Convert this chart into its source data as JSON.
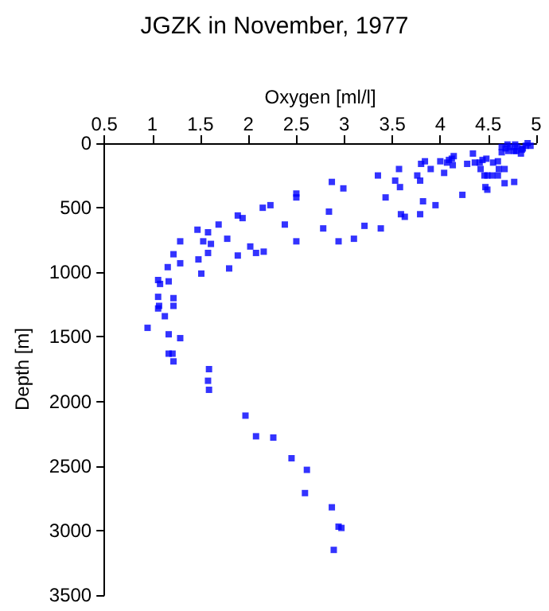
{
  "chart_data": {
    "type": "scatter",
    "title": "JGZK in November, 1977",
    "xlabel": "Oxygen [ml/l]",
    "ylabel": "Depth [m]",
    "x": [
      0.95,
      1.17,
      1.29,
      1.17,
      1.21,
      1.22,
      1.59,
      1.58,
      1.59,
      1.97,
      2.08,
      2.26,
      2.45,
      2.61,
      2.59,
      2.87,
      2.94,
      2.97,
      2.89,
      1.06,
      1.08,
      1.17,
      1.06,
      1.22,
      1.07,
      1.22,
      1.06,
      1.13,
      1.16,
      1.22,
      1.29,
      1.29,
      1.47,
      1.58,
      1.53,
      1.61,
      1.48,
      1.58,
      1.51,
      1.69,
      1.78,
      1.8,
      1.89,
      1.94,
      1.89,
      2.02,
      2.08,
      2.15,
      2.23,
      2.16,
      2.38,
      2.5,
      2.5,
      2.5,
      2.78,
      2.84,
      2.87,
      2.94,
      2.99,
      3.1,
      3.21,
      3.35,
      3.38,
      3.43,
      3.53,
      3.57,
      3.58,
      3.59,
      3.63,
      3.76,
      3.79,
      3.79,
      3.8,
      3.84,
      3.82,
      3.9,
      3.95,
      4.0,
      4.04,
      4.07,
      4.09,
      4.12,
      4.14,
      4.13,
      4.23,
      4.28,
      4.34,
      4.36,
      4.41,
      4.42,
      4.44,
      4.46,
      4.47,
      4.49,
      4.49,
      4.48,
      4.55,
      4.54,
      4.6,
      4.61,
      4.6,
      4.67,
      4.67,
      4.64,
      4.68,
      4.7,
      4.73,
      4.77,
      4.77,
      4.78,
      4.8,
      4.84,
      4.86,
      4.89,
      4.91,
      4.94,
      4.64,
      4.71,
      4.79,
      4.85
    ],
    "values": [
      1430,
      1480,
      1510,
      1630,
      1630,
      1690,
      1750,
      1840,
      1910,
      2110,
      2270,
      2280,
      2440,
      2530,
      2710,
      2820,
      2970,
      2980,
      3150,
      1060,
      1090,
      1070,
      1190,
      1200,
      1260,
      1260,
      1280,
      1340,
      960,
      860,
      760,
      930,
      670,
      690,
      760,
      780,
      900,
      850,
      1010,
      630,
      740,
      970,
      560,
      580,
      870,
      800,
      850,
      500,
      480,
      840,
      630,
      390,
      420,
      760,
      660,
      530,
      300,
      760,
      350,
      740,
      640,
      250,
      660,
      420,
      290,
      200,
      340,
      550,
      570,
      250,
      290,
      550,
      160,
      140,
      450,
      200,
      480,
      140,
      230,
      150,
      130,
      120,
      100,
      170,
      400,
      160,
      80,
      150,
      150,
      200,
      130,
      250,
      340,
      360,
      250,
      120,
      150,
      250,
      250,
      200,
      140,
      200,
      310,
      70,
      40,
      10,
      30,
      60,
      300,
      10,
      30,
      80,
      40,
      20,
      0,
      20,
      30,
      60,
      60,
      50
    ],
    "color": "#0000ff",
    "marker": "square",
    "xlim": [
      0.5,
      5
    ],
    "xticks": [
      0.5,
      1,
      1.5,
      2,
      2.5,
      3,
      3.5,
      4,
      4.5,
      5
    ],
    "ylim": [
      3500,
      0
    ],
    "yticks": [
      0,
      500,
      1000,
      1500,
      2000,
      2500,
      3000,
      3500
    ],
    "grid": false
  }
}
